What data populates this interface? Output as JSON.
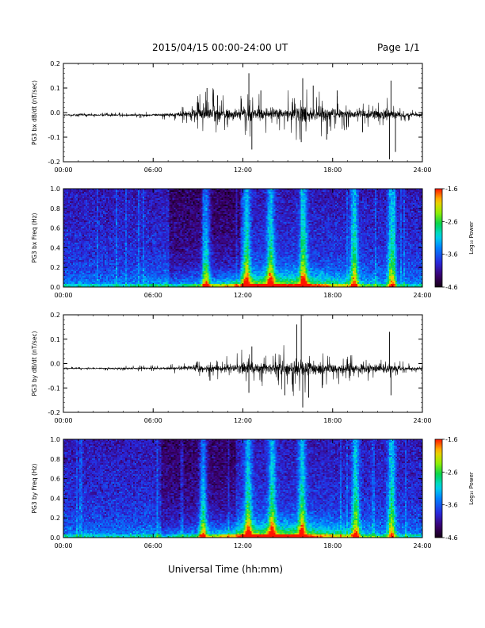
{
  "header": {
    "title": "2015/04/15  00:00-24:00 UT",
    "page": "Page 1/1"
  },
  "footer": {
    "xlabel": "Universal Time (hh:mm)"
  },
  "chart_data": [
    {
      "type": "line",
      "title": "",
      "ylabel": "PG3 bx dB/dt (nT/sec)",
      "xlabel": "",
      "xlim": [
        "00:00",
        "24:00"
      ],
      "ylim": [
        -0.2,
        0.2
      ],
      "x_ticks": [
        "00:00",
        "06:00",
        "12:00",
        "18:00",
        "24:00"
      ],
      "y_ticks": [
        "-0.2",
        "-0.1",
        "0.0",
        "0.1",
        "0.2"
      ],
      "series": [
        {
          "x_hours": [
            0,
            2,
            4,
            6,
            7.5,
            8,
            8.5,
            9,
            9.5,
            10,
            10.5,
            11,
            11.5,
            12,
            12.5,
            13,
            13.5,
            14,
            14.5,
            15,
            15.5,
            16,
            16.5,
            17,
            17.5,
            18,
            18.5,
            19,
            19.5,
            20,
            20.5,
            21,
            21.5,
            22,
            22.5,
            23,
            24
          ],
          "baseline": [
            -0.01,
            -0.01,
            -0.01,
            -0.01,
            -0.008,
            -0.006,
            -0.004,
            -0.004,
            -0.004,
            -0.004,
            -0.006,
            -0.006,
            -0.006,
            -0.004,
            -0.004,
            -0.004,
            -0.004,
            -0.004,
            -0.004,
            -0.006,
            -0.006,
            -0.006,
            -0.006,
            -0.006,
            -0.006,
            -0.006,
            -0.006,
            -0.006,
            -0.006,
            -0.006,
            -0.006,
            -0.006,
            -0.006,
            -0.008,
            -0.008,
            -0.01,
            -0.01
          ],
          "amplitude": [
            0.005,
            0.005,
            0.006,
            0.008,
            0.015,
            0.025,
            0.03,
            0.045,
            0.05,
            0.06,
            0.05,
            0.045,
            0.04,
            0.045,
            0.06,
            0.05,
            0.045,
            0.04,
            0.05,
            0.06,
            0.06,
            0.07,
            0.06,
            0.055,
            0.05,
            0.045,
            0.04,
            0.035,
            0.03,
            0.03,
            0.035,
            0.04,
            0.045,
            0.03,
            0.02,
            0.015,
            0.01
          ],
          "spikes": [
            {
              "x": 9.6,
              "y": 0.1
            },
            {
              "x": 10.3,
              "y": 0.07
            },
            {
              "x": 12.4,
              "y": 0.16
            },
            {
              "x": 12.6,
              "y": -0.15
            },
            {
              "x": 13.2,
              "y": 0.09
            },
            {
              "x": 15.9,
              "y": -0.12
            },
            {
              "x": 16.0,
              "y": 0.14
            },
            {
              "x": 16.7,
              "y": 0.11
            },
            {
              "x": 17.6,
              "y": -0.11
            },
            {
              "x": 18.3,
              "y": 0.09
            },
            {
              "x": 20.0,
              "y": -0.08
            },
            {
              "x": 21.8,
              "y": -0.19
            },
            {
              "x": 21.9,
              "y": 0.13
            },
            {
              "x": 22.2,
              "y": -0.16
            }
          ]
        }
      ]
    },
    {
      "type": "heatmap",
      "title": "",
      "ylabel": "PG3 bx Freq (Hz)",
      "xlabel": "",
      "xlim": [
        "00:00",
        "24:00"
      ],
      "ylim": [
        0.0,
        1.0
      ],
      "x_ticks": [
        "00:00",
        "06:00",
        "12:00",
        "18:00",
        "24:00"
      ],
      "y_ticks": [
        "0.0",
        "0.2",
        "0.4",
        "0.6",
        "0.8",
        "1.0"
      ],
      "colorbar": {
        "label": "Log₁₀ Power",
        "range": [
          -4.6,
          -1.6
        ],
        "ticks": [
          "-1.6",
          "-2.6",
          "-3.6",
          "-4.6"
        ]
      },
      "activity_hours": [
        9.5,
        12.2,
        13.8,
        16.0,
        19.4,
        21.9
      ],
      "quiet_window": [
        7.0,
        11.8
      ]
    },
    {
      "type": "line",
      "title": "",
      "ylabel": "PG3 by dB/dt (nT/sec)",
      "xlabel": "",
      "xlim": [
        "00:00",
        "24:00"
      ],
      "ylim": [
        -0.2,
        0.2
      ],
      "x_ticks": [
        "00:00",
        "06:00",
        "12:00",
        "18:00",
        "24:00"
      ],
      "y_ticks": [
        "-0.2",
        "-0.1",
        "0.0",
        "0.1",
        "0.2"
      ],
      "series": [
        {
          "x_hours": [
            0,
            2,
            4,
            6,
            7.5,
            8,
            8.5,
            9,
            9.5,
            10,
            10.5,
            11,
            11.5,
            12,
            12.5,
            13,
            13.5,
            14,
            14.5,
            15,
            15.5,
            16,
            16.5,
            17,
            17.5,
            18,
            18.5,
            19,
            19.5,
            20,
            20.5,
            21,
            21.5,
            22,
            22.5,
            23,
            24
          ],
          "baseline": [
            -0.02,
            -0.02,
            -0.02,
            -0.02,
            -0.02,
            -0.018,
            -0.018,
            -0.02,
            -0.02,
            -0.02,
            -0.02,
            -0.02,
            -0.02,
            -0.02,
            -0.02,
            -0.02,
            -0.02,
            -0.02,
            -0.02,
            -0.02,
            -0.02,
            -0.02,
            -0.02,
            -0.02,
            -0.02,
            -0.02,
            -0.02,
            -0.02,
            -0.02,
            -0.02,
            -0.02,
            -0.02,
            -0.02,
            -0.02,
            -0.02,
            -0.02,
            -0.02
          ],
          "amplitude": [
            0.004,
            0.004,
            0.006,
            0.008,
            0.012,
            0.015,
            0.02,
            0.025,
            0.028,
            0.03,
            0.03,
            0.03,
            0.035,
            0.045,
            0.05,
            0.045,
            0.04,
            0.045,
            0.055,
            0.06,
            0.07,
            0.075,
            0.06,
            0.05,
            0.045,
            0.04,
            0.035,
            0.03,
            0.03,
            0.03,
            0.035,
            0.04,
            0.045,
            0.025,
            0.02,
            0.012,
            0.01
          ],
          "spikes": [
            {
              "x": 9.8,
              "y": -0.07
            },
            {
              "x": 12.4,
              "y": -0.12
            },
            {
              "x": 12.6,
              "y": 0.07
            },
            {
              "x": 14.8,
              "y": -0.13
            },
            {
              "x": 15.6,
              "y": 0.16
            },
            {
              "x": 15.9,
              "y": 0.2
            },
            {
              "x": 16.0,
              "y": -0.18
            },
            {
              "x": 16.4,
              "y": -0.14
            },
            {
              "x": 17.3,
              "y": -0.1
            },
            {
              "x": 21.8,
              "y": 0.13
            },
            {
              "x": 21.9,
              "y": -0.13
            }
          ]
        }
      ]
    },
    {
      "type": "heatmap",
      "title": "",
      "ylabel": "PG3 by Freq (Hz)",
      "xlabel": "",
      "xlim": [
        "00:00",
        "24:00"
      ],
      "ylim": [
        0.0,
        1.0
      ],
      "x_ticks": [
        "00:00",
        "06:00",
        "12:00",
        "18:00",
        "24:00"
      ],
      "y_ticks": [
        "0.0",
        "0.2",
        "0.4",
        "0.6",
        "0.8",
        "1.0"
      ],
      "colorbar": {
        "label": "Log₁₀ Power",
        "range": [
          -4.6,
          -1.6
        ],
        "ticks": [
          "-1.6",
          "-2.6",
          "-3.6",
          "-4.6"
        ]
      },
      "activity_hours": [
        9.3,
        12.3,
        13.9,
        15.9,
        19.5,
        21.9
      ],
      "quiet_window": [
        6.5,
        11.5
      ]
    }
  ]
}
